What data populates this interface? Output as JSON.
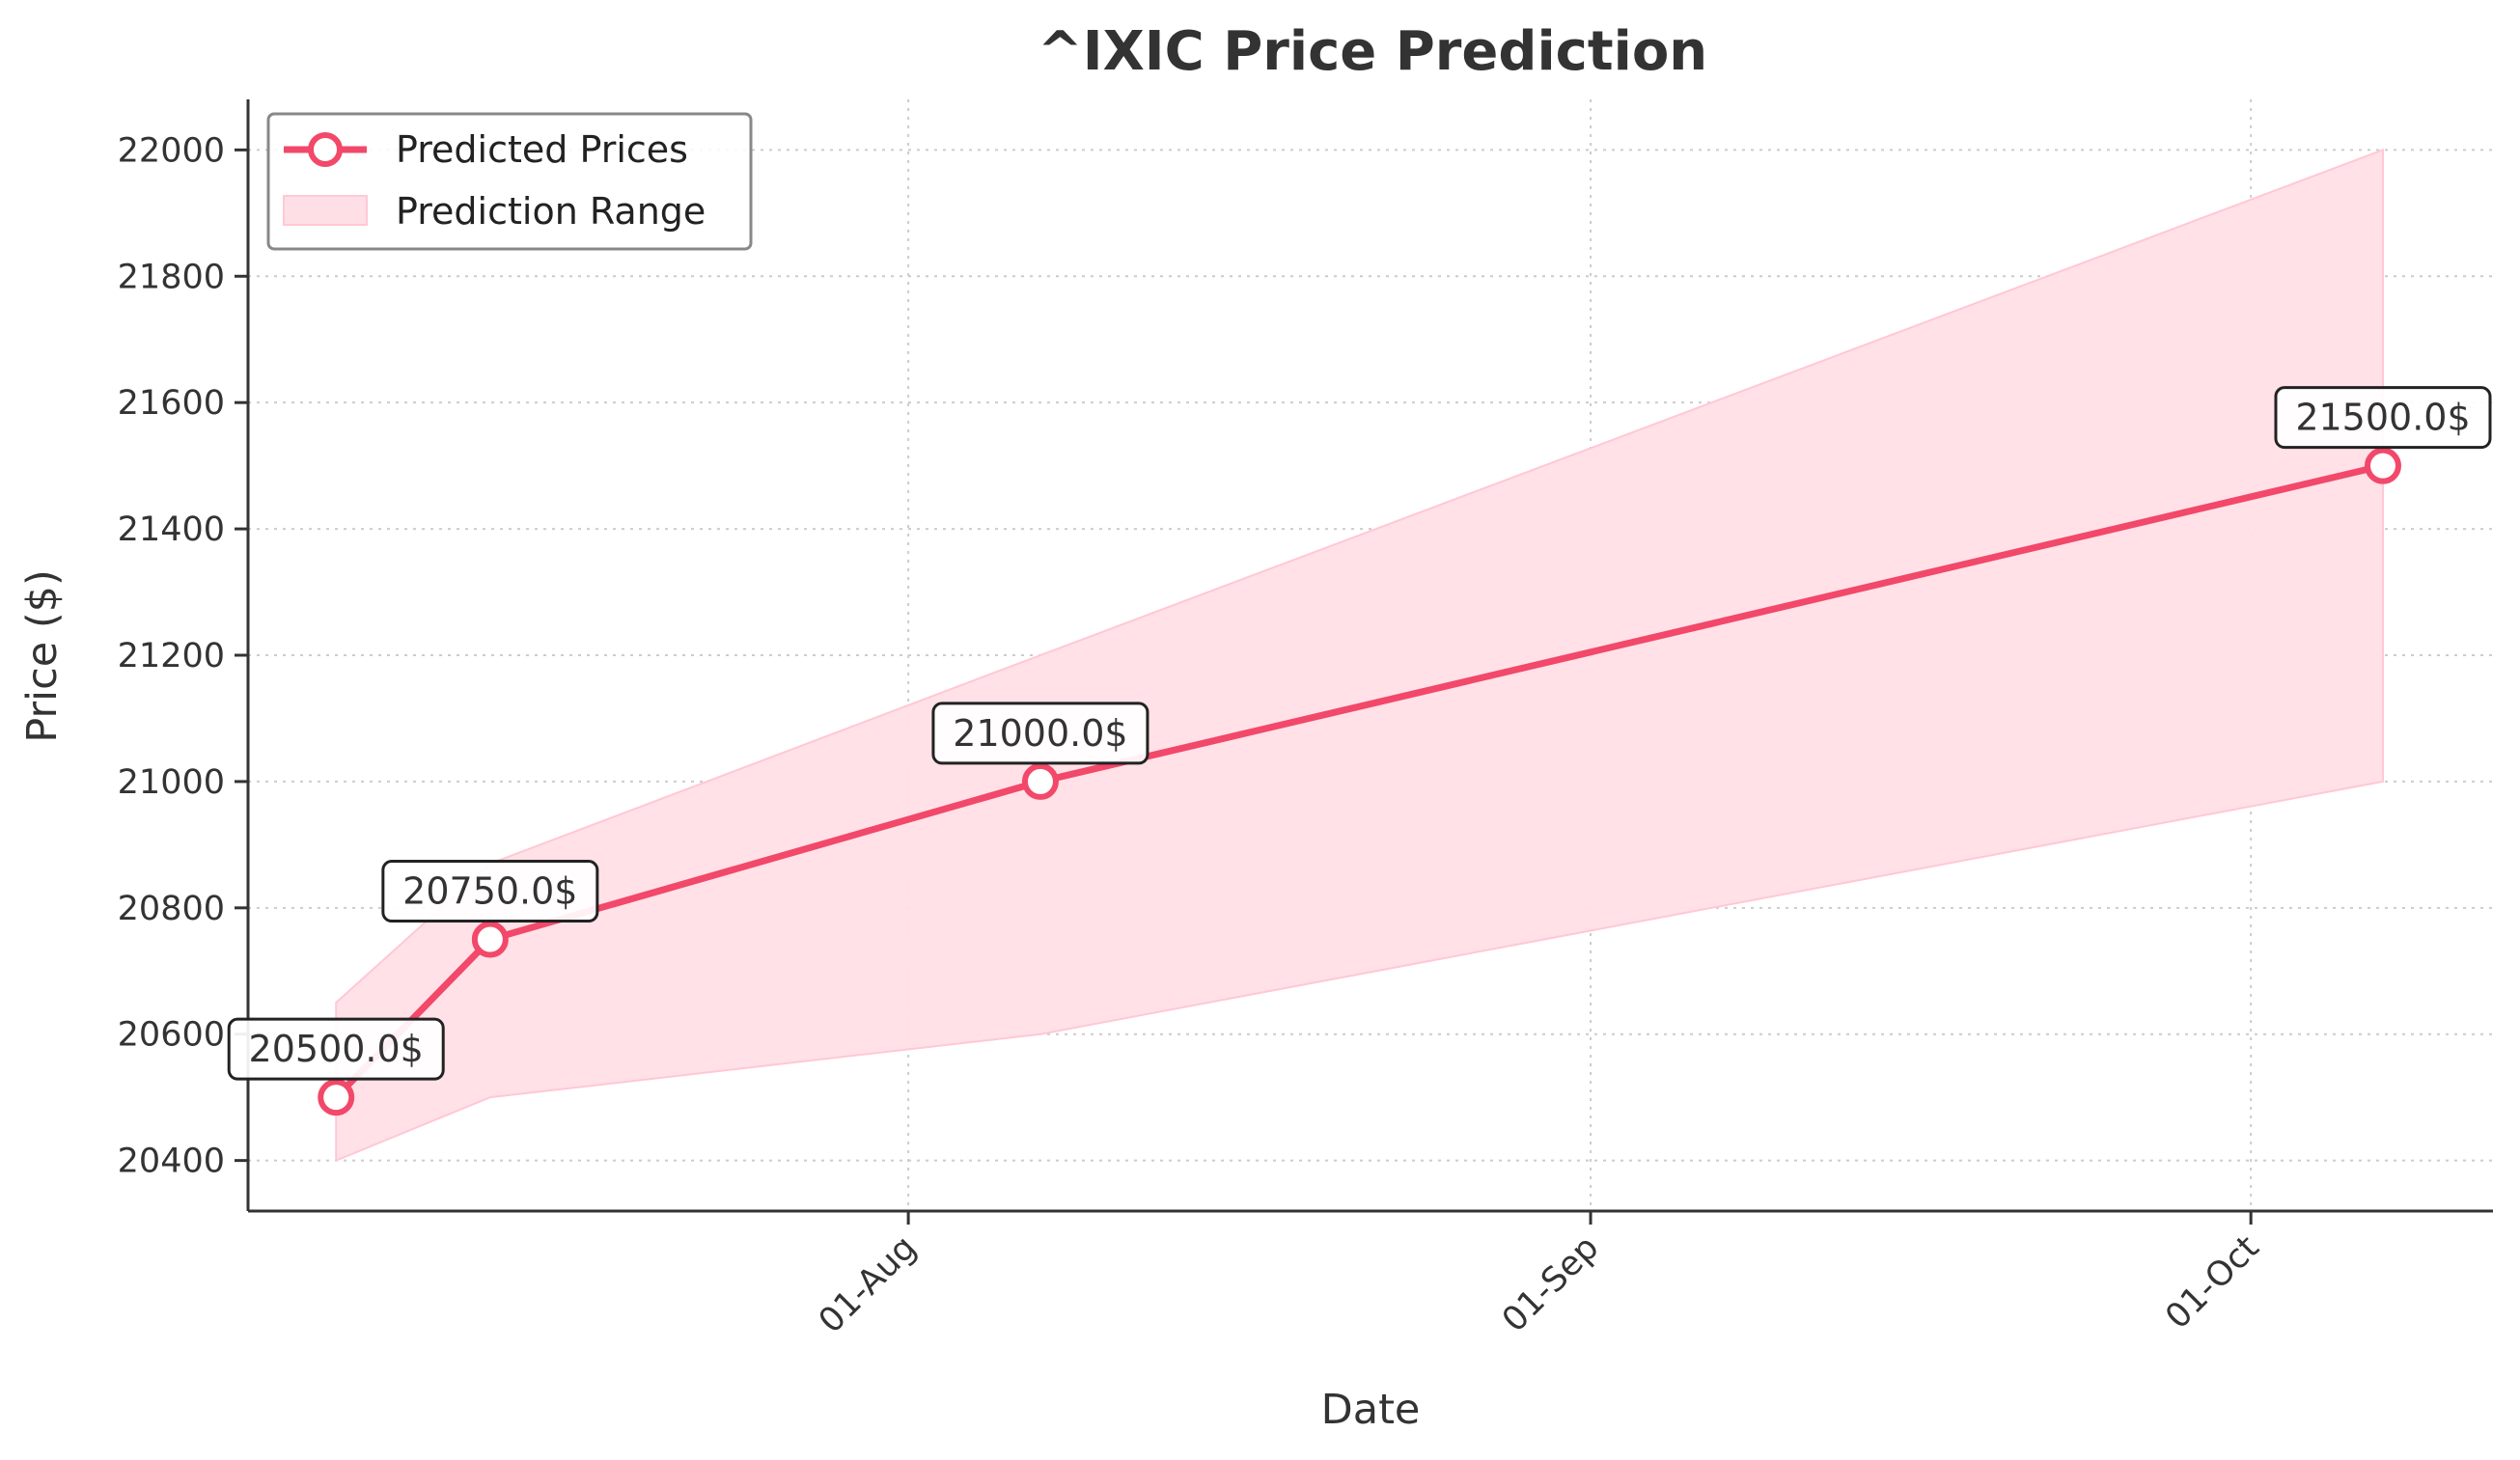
{
  "chart_data": {
    "type": "line",
    "title": "^IXIC Price Prediction",
    "xlabel": "Date",
    "ylabel": "Price ($)",
    "x_tick_labels": [
      "01-Aug",
      "01-Sep",
      "01-Oct"
    ],
    "y_ticks": [
      20400,
      20600,
      20800,
      21000,
      21200,
      21400,
      21600,
      21800,
      22000
    ],
    "ylim": [
      20320,
      22080
    ],
    "xlim": [
      "2024-07-02",
      "2024-10-12"
    ],
    "grid": true,
    "legend_position": "top-left",
    "series": [
      {
        "name": "Predicted Prices",
        "kind": "line-markers",
        "color": "#f2486a",
        "x": [
          "2024-07-06",
          "2024-07-13",
          "2024-08-07",
          "2024-10-07"
        ],
        "values": [
          20500,
          20750,
          21000,
          21500
        ]
      },
      {
        "name": "Prediction Range",
        "kind": "band",
        "color": "#ffdfe6",
        "x": [
          "2024-07-06",
          "2024-07-13",
          "2024-08-07",
          "2024-10-07"
        ],
        "lower": [
          20400,
          20500,
          20600,
          21000
        ],
        "upper": [
          20650,
          20870,
          21200,
          22000
        ]
      }
    ],
    "annotations": [
      {
        "x": "2024-07-06",
        "y": 20500,
        "text": "20500.0$"
      },
      {
        "x": "2024-07-13",
        "y": 20750,
        "text": "20750.0$"
      },
      {
        "x": "2024-08-07",
        "y": 21000,
        "text": "21000.0$"
      },
      {
        "x": "2024-10-07",
        "y": 21500,
        "text": "21500.0$"
      }
    ]
  }
}
